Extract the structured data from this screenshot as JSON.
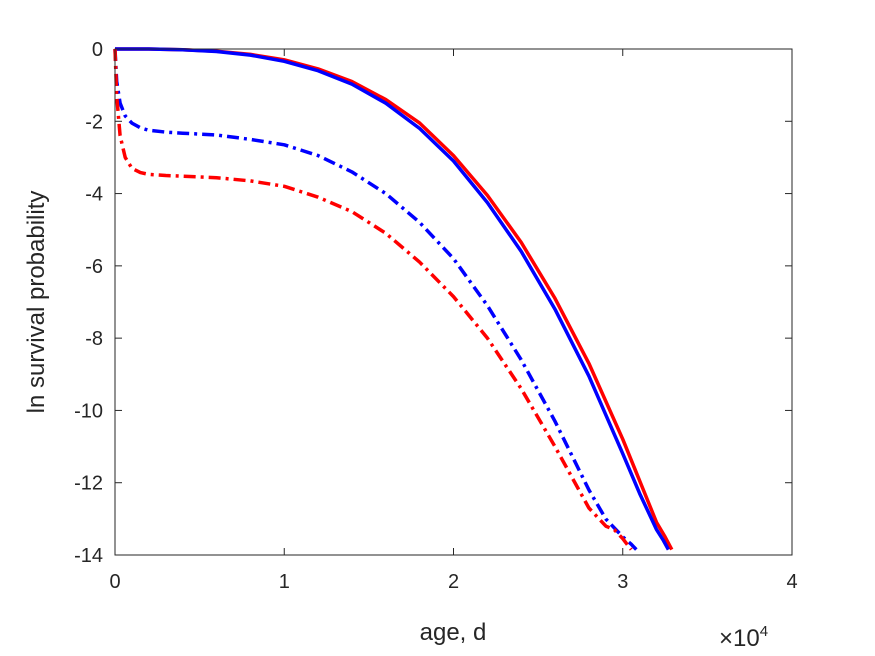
{
  "chart_data": {
    "type": "line",
    "xlabel": "age, d",
    "ylabel": "ln survival probability",
    "x_exponent_label": "×10",
    "x_exponent_power": "4",
    "xlim": [
      0,
      40000
    ],
    "ylim": [
      -14,
      0
    ],
    "xticks": [
      0,
      10000,
      20000,
      30000,
      40000
    ],
    "xtick_labels": [
      "0",
      "1",
      "2",
      "3",
      "4"
    ],
    "yticks": [
      0,
      -2,
      -4,
      -6,
      -8,
      -10,
      -12,
      -14
    ],
    "ytick_labels": [
      "0",
      "-2",
      "-4",
      "-6",
      "-8",
      "-10",
      "-12",
      "-14"
    ],
    "grid": false,
    "legend": "none",
    "series": [
      {
        "color": "#ff0000",
        "style": "solid",
        "x": [
          0,
          2000,
          4000,
          6000,
          8000,
          10000,
          12000,
          14000,
          16000,
          18000,
          20000,
          22000,
          24000,
          26000,
          28000,
          30000,
          31000,
          32000,
          32500,
          32900
        ],
        "y": [
          0,
          0,
          -0.02,
          -0.06,
          -0.15,
          -0.3,
          -0.55,
          -0.9,
          -1.4,
          -2.05,
          -2.95,
          -4.05,
          -5.35,
          -6.9,
          -8.7,
          -10.8,
          -11.95,
          -13.1,
          -13.5,
          -13.85
        ]
      },
      {
        "color": "#0000ff",
        "style": "solid",
        "x": [
          0,
          2000,
          4000,
          6000,
          8000,
          10000,
          12000,
          14000,
          16000,
          18000,
          20000,
          22000,
          24000,
          26000,
          28000,
          30000,
          31000,
          32000,
          32400,
          32700
        ],
        "y": [
          0,
          0,
          -0.02,
          -0.07,
          -0.17,
          -0.34,
          -0.6,
          -0.97,
          -1.5,
          -2.2,
          -3.1,
          -4.25,
          -5.6,
          -7.2,
          -9.05,
          -11.2,
          -12.3,
          -13.3,
          -13.6,
          -13.85
        ]
      },
      {
        "color": "#0000ff",
        "style": "dashdot",
        "x": [
          0,
          100,
          300,
          600,
          1000,
          1500,
          2000,
          3000,
          4000,
          6000,
          8000,
          10000,
          12000,
          14000,
          16000,
          18000,
          20000,
          22000,
          24000,
          26000,
          28000,
          29000,
          30000,
          30500,
          30800
        ],
        "y": [
          0,
          -0.9,
          -1.5,
          -1.85,
          -2.05,
          -2.18,
          -2.25,
          -2.3,
          -2.33,
          -2.38,
          -2.5,
          -2.65,
          -2.95,
          -3.4,
          -4.0,
          -4.8,
          -5.8,
          -7.1,
          -8.6,
          -10.3,
          -12.2,
          -13.0,
          -13.5,
          -13.7,
          -13.85
        ]
      },
      {
        "color": "#ff0000",
        "style": "dashdot",
        "x": [
          0,
          100,
          300,
          600,
          1000,
          1500,
          2000,
          3000,
          4000,
          6000,
          8000,
          10000,
          12000,
          14000,
          16000,
          18000,
          20000,
          22000,
          24000,
          26000,
          28000,
          29000,
          29500,
          30000,
          30500
        ],
        "y": [
          0,
          -1.3,
          -2.4,
          -3.0,
          -3.3,
          -3.42,
          -3.47,
          -3.5,
          -3.52,
          -3.56,
          -3.65,
          -3.8,
          -4.1,
          -4.5,
          -5.1,
          -5.9,
          -6.85,
          -8.0,
          -9.4,
          -11.0,
          -12.7,
          -13.2,
          -13.3,
          -13.55,
          -13.85
        ]
      }
    ]
  }
}
